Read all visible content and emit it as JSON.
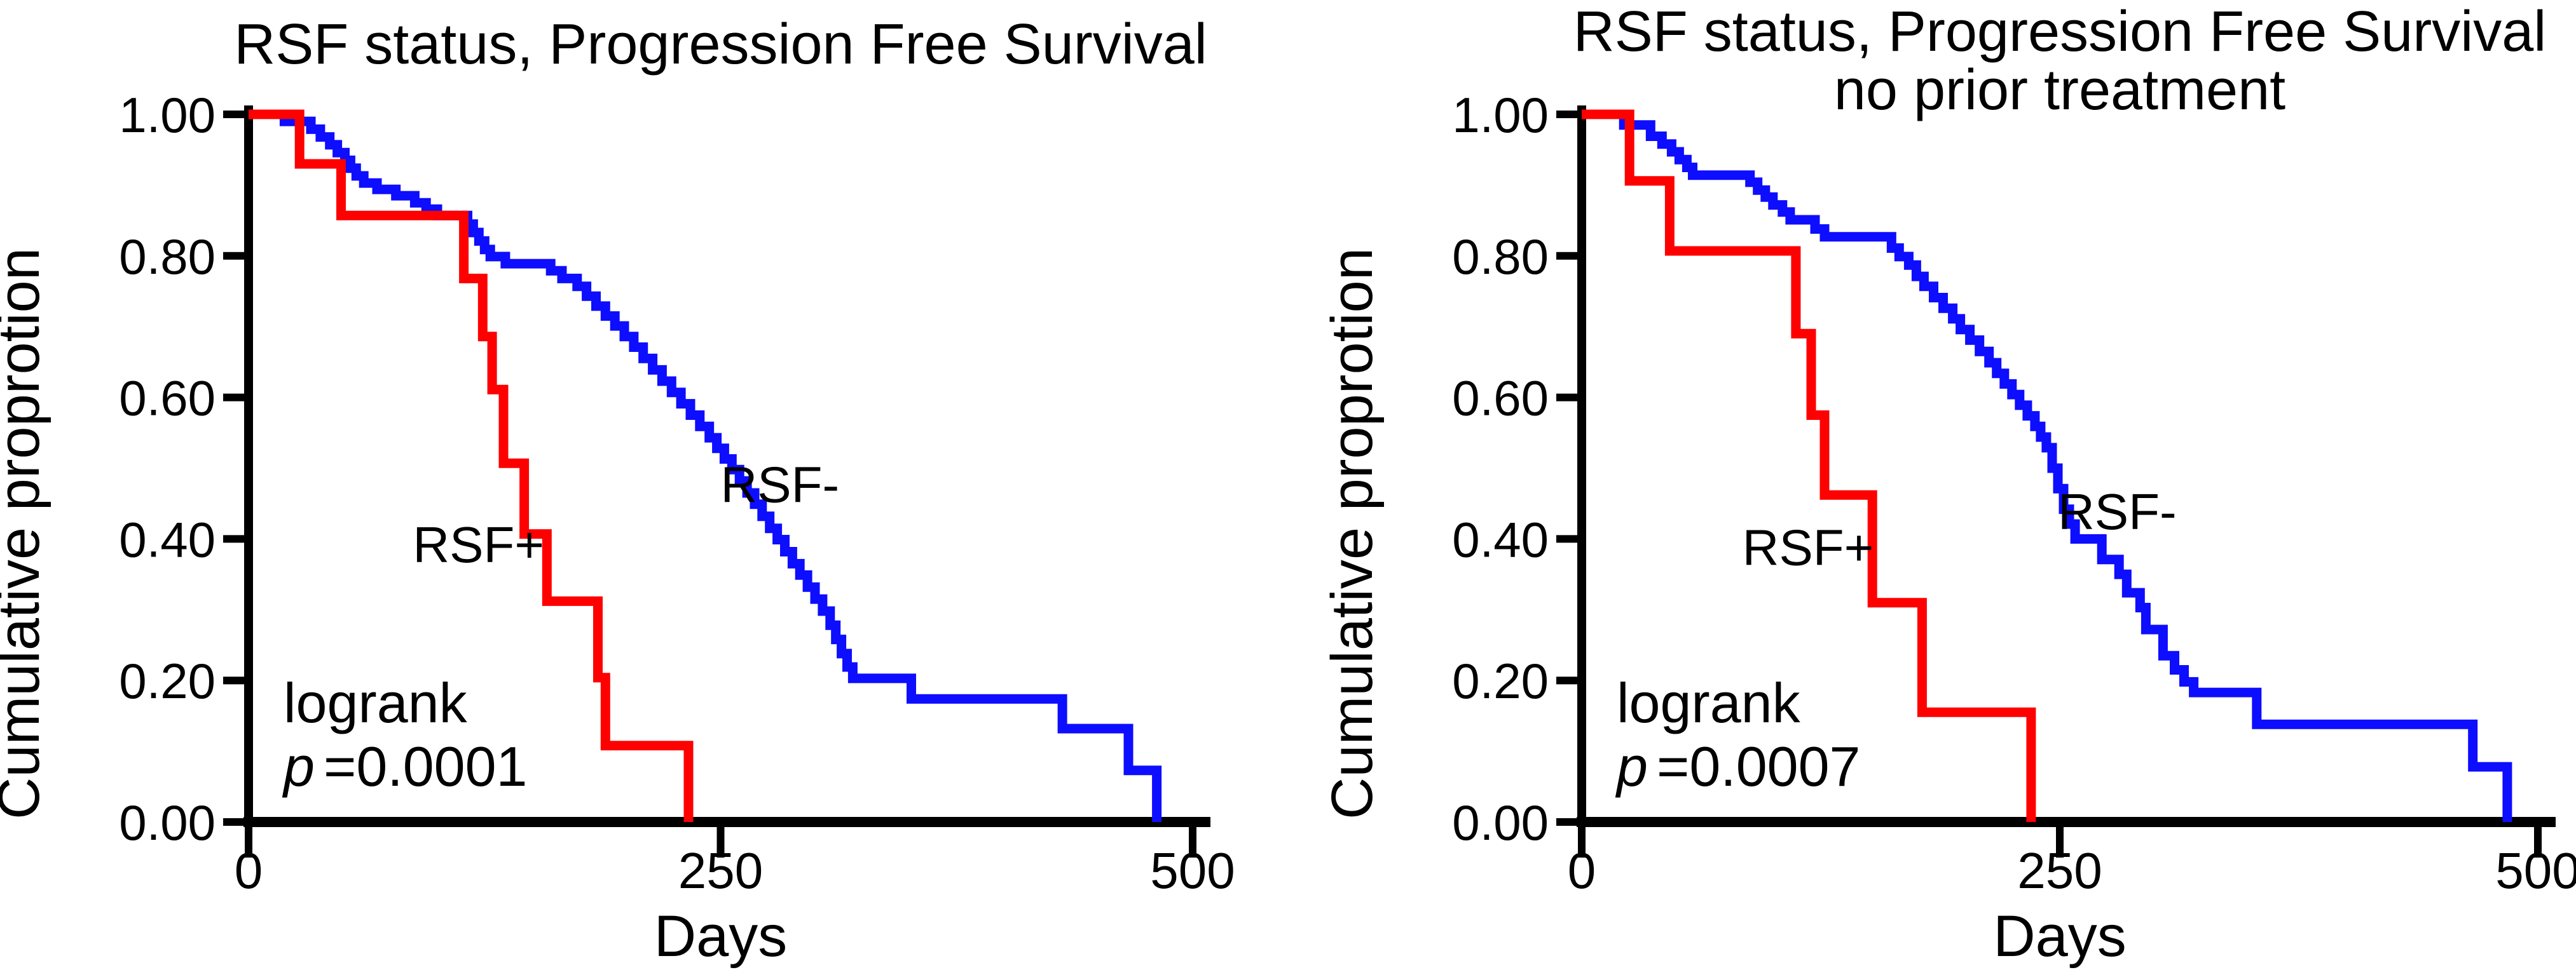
{
  "figure": {
    "background": "#ffffff",
    "axis_color": "#000000",
    "text_color": "#000000"
  },
  "chart_data": [
    {
      "type": "line",
      "subtype": "kaplan-meier-step",
      "title": "RSF status, Progression Free Survival",
      "title_lines": [
        "RSF status, Progression Free Survival"
      ],
      "xlabel": "Days",
      "ylabel": "Cumulative proprotion",
      "xlim": [
        0,
        500
      ],
      "ylim": [
        0.0,
        1.0
      ],
      "x_ticks": [
        "0",
        "250",
        "500"
      ],
      "x_tick_values": [
        0,
        250,
        500
      ],
      "y_tick_labels": [
        "1.00",
        "0.80",
        "0.60",
        "0.40",
        "0.20",
        "0.00"
      ],
      "y_tick_values": [
        1.0,
        0.8,
        0.6,
        0.4,
        0.2,
        0.0
      ],
      "grid": false,
      "legend_position": "inline-labels",
      "annotation": {
        "line1": "logrank",
        "p_label": "p",
        "p_value": "=0.0001"
      },
      "series": [
        {
          "name": "RSF-",
          "color": "#0d0dff",
          "label": {
            "day": 250,
            "value": 0.452
          },
          "points": [
            [
              0,
              1.0
            ],
            [
              19,
              0.99
            ],
            [
              33,
              0.979
            ],
            [
              38,
              0.968
            ],
            [
              43,
              0.957
            ],
            [
              47,
              0.946
            ],
            [
              51,
              0.935
            ],
            [
              54,
              0.924
            ],
            [
              57,
              0.913
            ],
            [
              61,
              0.903
            ],
            [
              68,
              0.894
            ],
            [
              78,
              0.885
            ],
            [
              88,
              0.875
            ],
            [
              94,
              0.866
            ],
            [
              100,
              0.857
            ],
            [
              116,
              0.845
            ],
            [
              119,
              0.833
            ],
            [
              122,
              0.821
            ],
            [
              125,
              0.809
            ],
            [
              128,
              0.799
            ],
            [
              136,
              0.789
            ],
            [
              160,
              0.779
            ],
            [
              166,
              0.768
            ],
            [
              174,
              0.757
            ],
            [
              179,
              0.743
            ],
            [
              184,
              0.729
            ],
            [
              189,
              0.715
            ],
            [
              194,
              0.701
            ],
            [
              199,
              0.686
            ],
            [
              204,
              0.671
            ],
            [
              209,
              0.655
            ],
            [
              214,
              0.639
            ],
            [
              219,
              0.623
            ],
            [
              224,
              0.607
            ],
            [
              229,
              0.591
            ],
            [
              234,
              0.575
            ],
            [
              239,
              0.559
            ],
            [
              244,
              0.543
            ],
            [
              248,
              0.528
            ],
            [
              252,
              0.513
            ],
            [
              256,
              0.498
            ],
            [
              260,
              0.482
            ],
            [
              264,
              0.465
            ],
            [
              268,
              0.449
            ],
            [
              272,
              0.432
            ],
            [
              276,
              0.415
            ],
            [
              280,
              0.399
            ],
            [
              284,
              0.382
            ],
            [
              288,
              0.365
            ],
            [
              292,
              0.349
            ],
            [
              296,
              0.332
            ],
            [
              300,
              0.315
            ],
            [
              304,
              0.298
            ],
            [
              308,
              0.278
            ],
            [
              311,
              0.258
            ],
            [
              314,
              0.238
            ],
            [
              317,
              0.219
            ],
            [
              320,
              0.203
            ],
            [
              351,
              0.174
            ],
            [
              431,
              0.132
            ],
            [
              466,
              0.073
            ],
            [
              481,
              0.0
            ]
          ]
        },
        {
          "name": "RSF+",
          "color": "#fe0000",
          "label": {
            "day": 87,
            "value": 0.367
          },
          "points": [
            [
              0,
              1.0
            ],
            [
              27,
              0.93
            ],
            [
              49,
              0.857
            ],
            [
              114,
              0.768
            ],
            [
              124,
              0.686
            ],
            [
              129,
              0.611
            ],
            [
              135,
              0.507
            ],
            [
              146,
              0.407
            ],
            [
              158,
              0.312
            ],
            [
              185,
              0.204
            ],
            [
              189,
              0.108
            ],
            [
              233,
              0.0
            ]
          ]
        }
      ]
    },
    {
      "type": "line",
      "subtype": "kaplan-meier-step",
      "title": "RSF status, Progression Free Survival no prior treatment",
      "title_lines": [
        "RSF status, Progression Free Survival",
        "no prior treatment"
      ],
      "xlabel": "Days",
      "ylabel": "Cumulative proprotion",
      "xlim": [
        0,
        500
      ],
      "ylim": [
        0.0,
        1.0
      ],
      "x_ticks": [
        "0",
        "250",
        "500"
      ],
      "x_tick_values": [
        0,
        250,
        500
      ],
      "y_tick_labels": [
        "1.00",
        "0.80",
        "0.60",
        "0.40",
        "0.20",
        "0.00"
      ],
      "y_tick_values": [
        1.0,
        0.8,
        0.6,
        0.4,
        0.2,
        0.0
      ],
      "grid": false,
      "legend_position": "inline-labels",
      "annotation": {
        "line1": "logrank",
        "p_label": "p",
        "p_value": "=0.0007"
      },
      "series": [
        {
          "name": "RSF-",
          "color": "#0d0dff",
          "label": {
            "day": 249,
            "value": 0.414
          },
          "points": [
            [
              0,
              1.0
            ],
            [
              22,
              0.985
            ],
            [
              36,
              0.969
            ],
            [
              42,
              0.958
            ],
            [
              47,
              0.947
            ],
            [
              51,
              0.936
            ],
            [
              55,
              0.925
            ],
            [
              58,
              0.914
            ],
            [
              88,
              0.904
            ],
            [
              92,
              0.893
            ],
            [
              96,
              0.883
            ],
            [
              100,
              0.872
            ],
            [
              105,
              0.862
            ],
            [
              109,
              0.851
            ],
            [
              122,
              0.838
            ],
            [
              127,
              0.827
            ],
            [
              162,
              0.811
            ],
            [
              166,
              0.799
            ],
            [
              171,
              0.787
            ],
            [
              175,
              0.771
            ],
            [
              179,
              0.757
            ],
            [
              184,
              0.741
            ],
            [
              189,
              0.726
            ],
            [
              194,
              0.711
            ],
            [
              198,
              0.696
            ],
            [
              203,
              0.681
            ],
            [
              208,
              0.665
            ],
            [
              213,
              0.649
            ],
            [
              217,
              0.634
            ],
            [
              221,
              0.619
            ],
            [
              225,
              0.604
            ],
            [
              229,
              0.589
            ],
            [
              233,
              0.574
            ],
            [
              237,
              0.559
            ],
            [
              240,
              0.544
            ],
            [
              243,
              0.529
            ],
            [
              246,
              0.5
            ],
            [
              249,
              0.471
            ],
            [
              252,
              0.442
            ],
            [
              255,
              0.421
            ],
            [
              258,
              0.4
            ],
            [
              272,
              0.371
            ],
            [
              281,
              0.35
            ],
            [
              285,
              0.324
            ],
            [
              292,
              0.303
            ],
            [
              295,
              0.272
            ],
            [
              304,
              0.235
            ],
            [
              310,
              0.215
            ],
            [
              315,
              0.198
            ],
            [
              320,
              0.183
            ],
            [
              353,
              0.138
            ],
            [
              466,
              0.078
            ],
            [
              484,
              0.0
            ]
          ]
        },
        {
          "name": "RSF+",
          "color": "#fe0000",
          "label": {
            "day": 84,
            "value": 0.363
          },
          "points": [
            [
              0,
              1.0
            ],
            [
              25,
              0.906
            ],
            [
              46,
              0.807
            ],
            [
              112,
              0.69
            ],
            [
              120,
              0.575
            ],
            [
              127,
              0.462
            ],
            [
              152,
              0.31
            ],
            [
              178,
              0.155
            ],
            [
              235,
              0.0
            ]
          ]
        }
      ]
    }
  ]
}
